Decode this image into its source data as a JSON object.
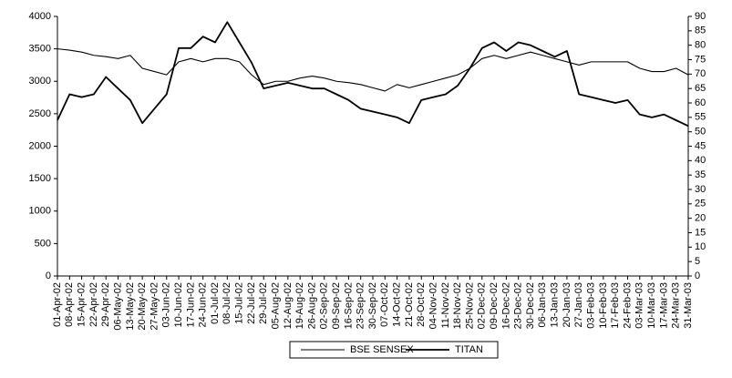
{
  "chart_data": {
    "type": "line",
    "categories": [
      "01-Apr-02",
      "08-Apr-02",
      "15-Apr-02",
      "22-Apr-02",
      "29-Apr-02",
      "06-May-02",
      "13-May-02",
      "20-May-02",
      "27-May-02",
      "03-Jun-02",
      "10-Jun-02",
      "17-Jun-02",
      "24-Jun-02",
      "01-Jul-02",
      "08-Jul-02",
      "15-Jul-02",
      "22-Jul-02",
      "29-Jul-02",
      "05-Aug-02",
      "12-Aug-02",
      "19-Aug-02",
      "26-Aug-02",
      "02-Sep-02",
      "09-Sep-02",
      "16-Sep-02",
      "23-Sep-02",
      "30-Sep-02",
      "07-Oct-02",
      "14-Oct-02",
      "21-Oct-02",
      "28-Oct-02",
      "04-Nov-02",
      "11-Nov-02",
      "18-Nov-02",
      "25-Nov-02",
      "02-Dec-02",
      "09-Dec-02",
      "16-Dec-02",
      "23-Dec-02",
      "30-Dec-02",
      "06-Jan-03",
      "13-Jan-03",
      "20-Jan-03",
      "27-Jan-03",
      "03-Feb-03",
      "10-Feb-03",
      "17-Feb-03",
      "24-Feb-03",
      "03-Mar-03",
      "10-Mar-03",
      "17-Mar-03",
      "24-Mar-03",
      "31-Mar-03"
    ],
    "series": [
      {
        "name": "BSE SENSEX",
        "color": "#000000",
        "axis": "y",
        "values": [
          3500,
          3480,
          3450,
          3400,
          3380,
          3350,
          3400,
          3200,
          3150,
          3100,
          3300,
          3350,
          3300,
          3350,
          3350,
          3300,
          3100,
          2950,
          3000,
          3000,
          3050,
          3080,
          3050,
          3000,
          2980,
          2950,
          2900,
          2850,
          2950,
          2900,
          2950,
          3000,
          3050,
          3100,
          3200,
          3350,
          3400,
          3350,
          3400,
          3450,
          3400,
          3350,
          3300,
          3250,
          3300,
          3300,
          3300,
          3300,
          3200,
          3150,
          3150,
          3200,
          3100
        ]
      },
      {
        "name": "TITAN",
        "color": "#000000",
        "axis": "y2",
        "values": [
          54,
          63,
          62,
          63,
          69,
          65,
          61,
          53,
          58,
          63,
          79,
          79,
          83,
          81,
          88,
          81,
          74,
          65,
          66,
          67,
          66,
          65,
          65,
          63,
          61,
          58,
          57,
          56,
          55,
          53,
          61,
          62,
          63,
          66,
          72,
          79,
          81,
          78,
          81,
          80,
          78,
          76,
          78,
          63,
          62,
          61,
          60,
          61,
          56,
          55,
          56,
          54,
          52
        ]
      }
    ],
    "ylim": [
      0,
      4000
    ],
    "yticks": [
      0,
      500,
      1000,
      1500,
      2000,
      2500,
      3000,
      3500,
      4000
    ],
    "y2lim": [
      0,
      90
    ],
    "y2ticks": [
      0,
      5,
      10,
      15,
      20,
      25,
      30,
      35,
      40,
      45,
      50,
      55,
      60,
      65,
      70,
      75,
      80,
      85,
      90
    ],
    "grid": false,
    "legend": "bottom"
  }
}
